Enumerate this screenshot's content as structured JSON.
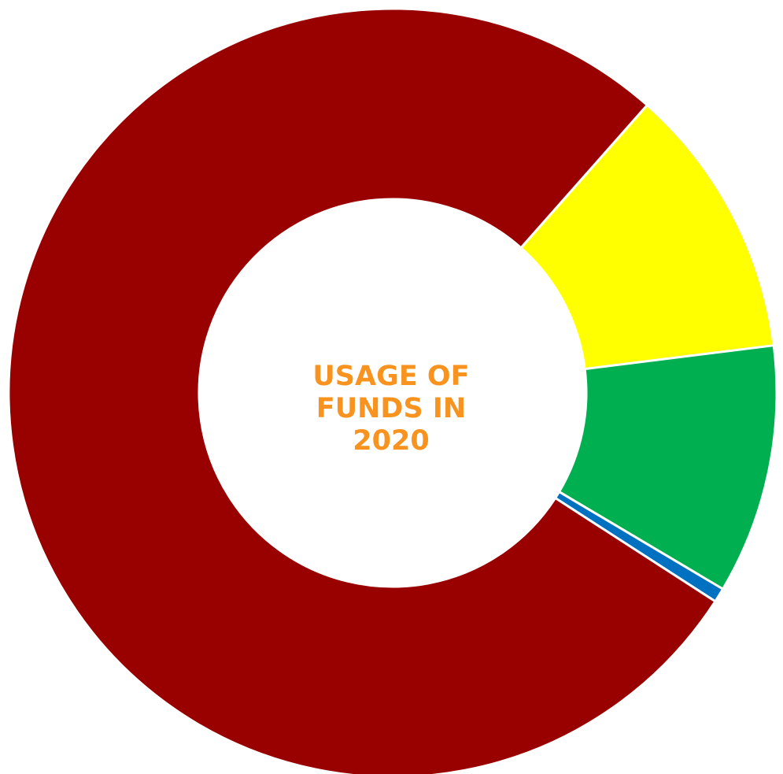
{
  "chart_data": {
    "type": "pie",
    "donut": true,
    "title_lines": [
      "USAGE OF",
      "FUNDS IN",
      "2020"
    ],
    "title_color": "#F7931E",
    "start_angle_deg": 48.5,
    "slice_border_color": "#FFFFFF",
    "slices": [
      {
        "value": 11.5,
        "color": "#FFFF00"
      },
      {
        "value": 10.5,
        "color": "#00B050"
      },
      {
        "value": 0.6,
        "color": "#0070C0"
      },
      {
        "value": 77.4,
        "color": "#990000"
      }
    ]
  }
}
